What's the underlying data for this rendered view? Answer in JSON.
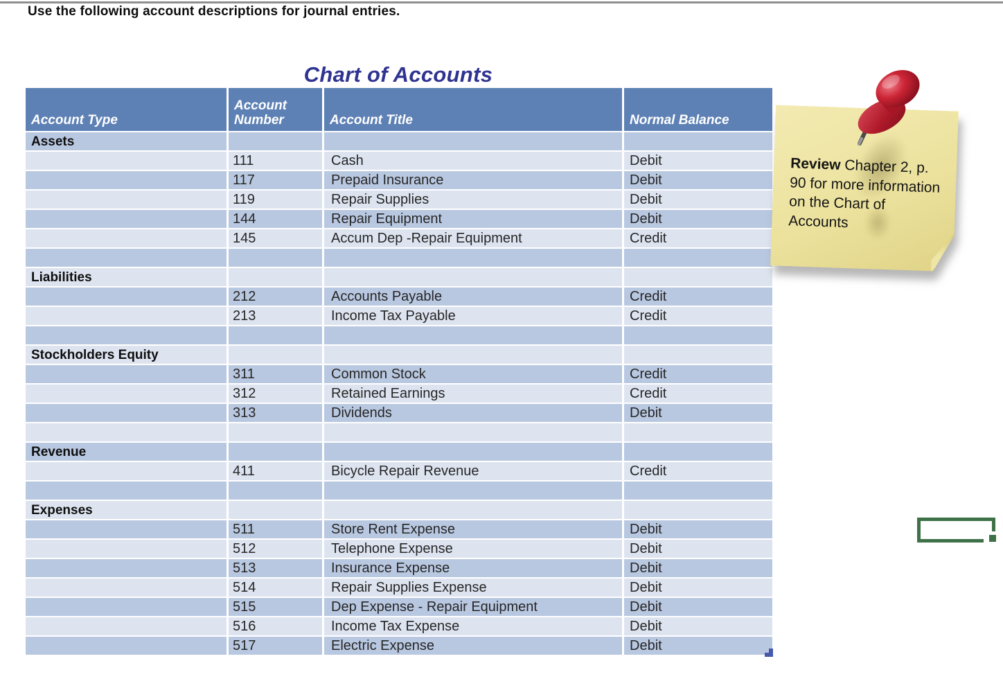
{
  "page": {
    "instruction": "Use the following account descriptions for journal entries.",
    "title": "Chart of Accounts"
  },
  "table": {
    "columns": [
      "Account Type",
      "Account Number",
      "Account Title",
      "Normal Balance"
    ],
    "rows": [
      {
        "section": "Assets"
      },
      {
        "number": "111",
        "title": "Cash",
        "balance": "Debit"
      },
      {
        "number": "117",
        "title": "Prepaid Insurance",
        "balance": "Debit"
      },
      {
        "number": "119",
        "title": "Repair Supplies",
        "balance": "Debit"
      },
      {
        "number": "144",
        "title": "Repair Equipment",
        "balance": "Debit"
      },
      {
        "number": "145",
        "title": "Accum Dep -Repair Equipment",
        "balance": "Credit"
      },
      {},
      {
        "section": "Liabilities"
      },
      {
        "number": "212",
        "title": "Accounts Payable",
        "balance": "Credit"
      },
      {
        "number": "213",
        "title": "Income Tax Payable",
        "balance": "Credit"
      },
      {},
      {
        "section": "Stockholders Equity"
      },
      {
        "number": "311",
        "title": "Common Stock",
        "balance": "Credit"
      },
      {
        "number": "312",
        "title": "Retained Earnings",
        "balance": "Credit"
      },
      {
        "number": "313",
        "title": "Dividends",
        "balance": "Debit"
      },
      {},
      {
        "section": "Revenue"
      },
      {
        "number": "411",
        "title": "Bicycle Repair Revenue",
        "balance": "Credit"
      },
      {},
      {
        "section": "Expenses"
      },
      {
        "number": "511",
        "title": "Store Rent Expense",
        "balance": "Debit"
      },
      {
        "number": "512",
        "title": "Telephone Expense",
        "balance": "Debit"
      },
      {
        "number": "513",
        "title": "Insurance Expense",
        "balance": "Debit"
      },
      {
        "number": "514",
        "title": "Repair Supplies Expense",
        "balance": "Debit"
      },
      {
        "number": "515",
        "title": "Dep Expense - Repair Equipment",
        "balance": "Debit"
      },
      {
        "number": "516",
        "title": "Income Tax Expense",
        "balance": "Debit"
      },
      {
        "number": "517",
        "title": "Electric Expense",
        "balance": "Debit"
      }
    ]
  },
  "sticky_note": {
    "bold_text": "Review",
    "rest_text": " Chapter 2, p. 90 for more information on the Chart of Accounts"
  },
  "colors": {
    "header_blue": "#5e81b5",
    "band_dark": "#b9c8e1",
    "band_light": "#dde4f0",
    "title_navy": "#2f3391",
    "note_yellow": "#ece29e",
    "pin_red": "#c01f30",
    "selection_green": "#3f7149",
    "table_handle_blue": "#4759ab"
  }
}
